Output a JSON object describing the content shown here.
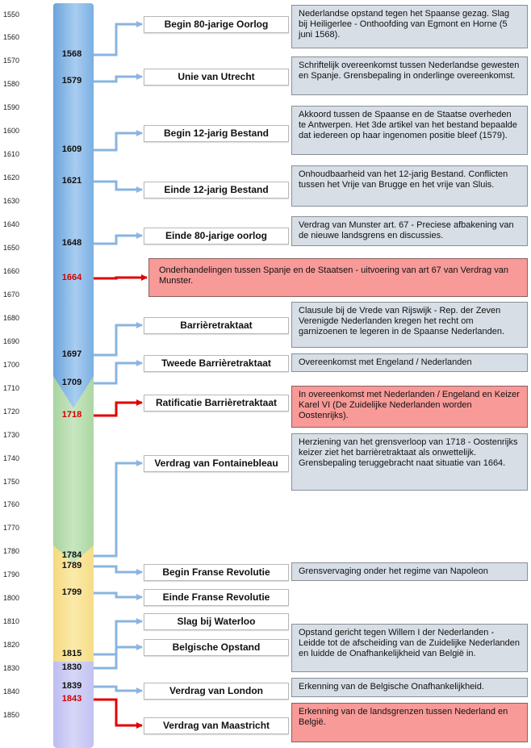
{
  "scale": {
    "start_year": 1550,
    "end_year": 1850,
    "step": 10,
    "ticks": [
      "1550",
      "1560",
      "1570",
      "1580",
      "1590",
      "1600",
      "1610",
      "1620",
      "1630",
      "1640",
      "1650",
      "1660",
      "1670",
      "1680",
      "1690",
      "1700",
      "1710",
      "1720",
      "1730",
      "1740",
      "1750",
      "1760",
      "1770",
      "1780",
      "1790",
      "1800",
      "1810",
      "1820",
      "1830",
      "1840",
      "1850"
    ]
  },
  "colors": {
    "period_spanish": "#8fbde6",
    "period_austrian": "#b8dcb0",
    "period_french": "#f7e29a",
    "period_dutch": "#c9c9f2",
    "blue_arrow": "#8ab4e0",
    "red_arrow": "#e00000",
    "desc_bg": "#d7dee6",
    "desc_bg_red": "#f79a98"
  },
  "events": [
    {
      "year": "1568",
      "label": "Begin 80-jarige Oorlog",
      "red": false,
      "desc": "Nederlandse opstand tegen het Spaanse gezag. Slag bij Heiligerlee - Onthoofding van Egmont en Horne (5 juni 1568)."
    },
    {
      "year": "1579",
      "label": "Unie van Utrecht",
      "red": false,
      "desc": "Schriftelijk overeenkomst tussen Nederlandse gewesten en Spanje. Grensbepaling in onderlinge overeenkomst."
    },
    {
      "year": "1609",
      "label": "Begin 12-jarig Bestand",
      "red": false,
      "desc": "Akkoord tussen de Spaanse en de Staatse overheden te Antwerpen. Het 3de artikel van het bestand bepaalde dat iedereen op haar ingenomen positie bleef (1579)."
    },
    {
      "year": "1621",
      "label": "Einde 12-jarig Bestand",
      "red": false,
      "desc": "Onhoudbaarheid van het 12-jarig Bestand. Conflicten tussen het Vrije van Brugge en het vrije van Sluis."
    },
    {
      "year": "1648",
      "label": "Einde 80-jarige oorlog",
      "red": false,
      "desc": "Verdrag van Munster art. 67 - Preciese afbakening van de nieuwe landsgrens en discussies."
    },
    {
      "year": "1664",
      "label": "",
      "red": true,
      "desc": "Onderhandelingen tussen Spanje en de Staatsen - uitvoering van art 67 van Verdrag van Munster."
    },
    {
      "year": "1697",
      "label": "Barrièretraktaat",
      "red": false,
      "desc": "Clausule bij de Vrede van Rijswijk - Rep. der Zeven Verenigde Nederlanden kregen het recht om garnizoenen te legeren in de Spaanse Nederlanden."
    },
    {
      "year": "1709",
      "label": "Tweede Barrièretraktaat",
      "red": false,
      "desc": "Overeenkomst met Engeland / Nederlanden"
    },
    {
      "year": "1718",
      "label": "Ratificatie Barrièretraktaat",
      "red": true,
      "desc": "In overeenkomst met Nederlanden / Engeland en Keizer Karel VI (De Zuidelijke Nederlanden worden Oostenrijks)."
    },
    {
      "year": "1784",
      "label": "Verdrag van Fontainebleau",
      "red": false,
      "desc": "Herziening van het grensverloop van 1718 - Oostenrijks keizer ziet het barrièretraktaat als onwettelijk. Grensbepaling teruggebracht naat situatie van 1664."
    },
    {
      "year": "1789",
      "label": "Begin Franse Revolutie",
      "red": false,
      "desc": "Grensvervaging onder het regime van Napoleon"
    },
    {
      "year": "1799",
      "label": "Einde Franse Revolutie",
      "red": false,
      "desc": ""
    },
    {
      "year": "1815",
      "label": "Slag bij Waterloo",
      "red": false,
      "desc": ""
    },
    {
      "year": "1830",
      "label": "Belgische Opstand",
      "red": false,
      "desc": "Opstand gericht tegen Willem I der Nederlanden - Leidde tot de afscheiding van de Zuidelijke Nederlanden en luidde de Onafhankelijkheid van België in."
    },
    {
      "year": "1839",
      "label": "Verdrag van London",
      "red": false,
      "desc": "Erkenning van de Belgische Onafhankelijkheid."
    },
    {
      "year": "1843",
      "label": "Verdrag van Maastricht",
      "red": true,
      "desc": "Erkenning van de landsgrenzen tussen Nederland en België."
    }
  ]
}
